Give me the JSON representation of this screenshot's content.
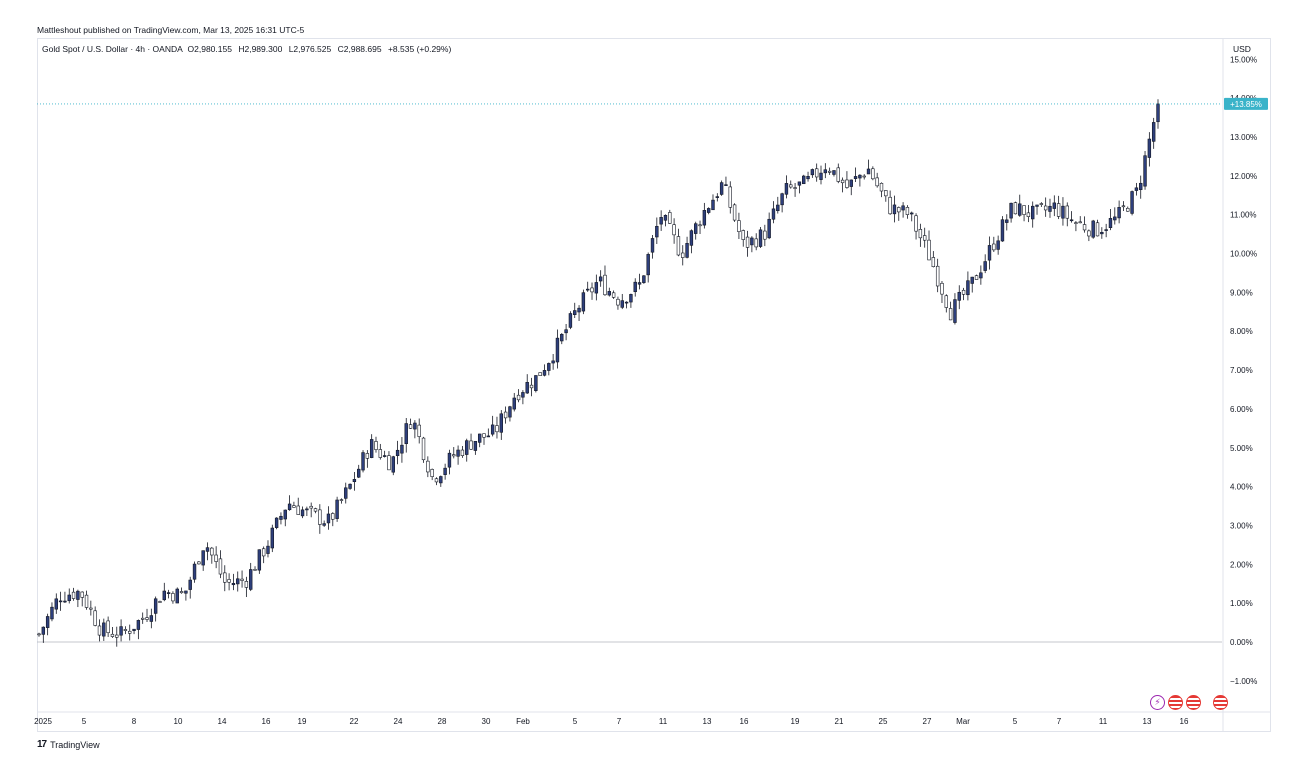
{
  "attribution": "Mattleshout published on TradingView.com, Mar 13, 2025 16:31 UTC-5",
  "legend": {
    "symbol": "Gold Spot / U.S. Dollar · 4h · OANDA",
    "open_label": "O",
    "open": "2,980.155",
    "high_label": "H",
    "high": "2,989.300",
    "low_label": "L",
    "low": "2,976.525",
    "close_label": "C",
    "close": "2,988.695",
    "change": "+8.535 (+0.29%)"
  },
  "currency": "USD",
  "brand": {
    "logo": "17",
    "name": "TradingView"
  },
  "event_icons": [
    "lightning-icon",
    "us-flag-icon",
    "us-flag-icon",
    "us-flag-icon"
  ],
  "colors": {
    "up": "#2e3f7c",
    "down": "#131722",
    "last_price_label": "#3ab3c9",
    "grid_zero": "#b2b5be"
  },
  "chart_data": {
    "type": "candlestick",
    "timeframe": "4h",
    "y_unit": "%",
    "ylim": [
      -1.8,
      15.2
    ],
    "y_ticks": [
      -1,
      0,
      1,
      2,
      3,
      4,
      5,
      6,
      7,
      8,
      9,
      10,
      11,
      12,
      13,
      14,
      15
    ],
    "y_tick_labels": [
      "−1.00%",
      "0.00%",
      "1.00%",
      "2.00%",
      "3.00%",
      "4.00%",
      "5.00%",
      "6.00%",
      "7.00%",
      "8.00%",
      "9.00%",
      "10.00%",
      "11.00%",
      "12.00%",
      "13.00%",
      "14.00%",
      "15.00%"
    ],
    "x_ticks": [
      "2025",
      "5",
      "8",
      "10",
      "14",
      "16",
      "19",
      "22",
      "24",
      "28",
      "30",
      "Feb",
      "5",
      "7",
      "11",
      "13",
      "16",
      "19",
      "21",
      "25",
      "27",
      "Mar",
      "5",
      "7",
      "11",
      "13",
      "16"
    ],
    "last_value": 13.85,
    "last_value_label": "+13.85%",
    "series": [
      {
        "x": "Jan 2",
        "y": 0.2
      },
      {
        "x": "Jan 3",
        "y": 1.2
      },
      {
        "x": "Jan 4",
        "y": 1.3
      },
      {
        "x": "Jan 5",
        "y": 0.3
      },
      {
        "x": "Jan 6",
        "y": 0.2
      },
      {
        "x": "Jan 7",
        "y": 0.6
      },
      {
        "x": "Jan 8",
        "y": 1.3
      },
      {
        "x": "Jan 9",
        "y": 1.2
      },
      {
        "x": "Jan 10",
        "y": 2.6
      },
      {
        "x": "Jan 13",
        "y": 1.5
      },
      {
        "x": "Jan 14",
        "y": 1.6
      },
      {
        "x": "Jan 15",
        "y": 2.5
      },
      {
        "x": "Jan 16",
        "y": 3.6
      },
      {
        "x": "Jan 17",
        "y": 3.3
      },
      {
        "x": "Jan 20",
        "y": 3.1
      },
      {
        "x": "Jan 21",
        "y": 4.0
      },
      {
        "x": "Jan 22",
        "y": 5.1
      },
      {
        "x": "Jan 23",
        "y": 4.6
      },
      {
        "x": "Jan 24",
        "y": 5.8
      },
      {
        "x": "Jan 27",
        "y": 4.2
      },
      {
        "x": "Jan 28",
        "y": 4.8
      },
      {
        "x": "Jan 29",
        "y": 5.2
      },
      {
        "x": "Jan 30",
        "y": 5.4
      },
      {
        "x": "Jan 31",
        "y": 6.4
      },
      {
        "x": "Feb 2",
        "y": 6.8
      },
      {
        "x": "Feb 3",
        "y": 7.6
      },
      {
        "x": "Feb 4",
        "y": 8.6
      },
      {
        "x": "Feb 5",
        "y": 9.3
      },
      {
        "x": "Feb 6",
        "y": 8.8
      },
      {
        "x": "Feb 7",
        "y": 9.2
      },
      {
        "x": "Feb 10",
        "y": 11.0
      },
      {
        "x": "Feb 11",
        "y": 10.0
      },
      {
        "x": "Feb 12",
        "y": 11.0
      },
      {
        "x": "Feb 13",
        "y": 11.8
      },
      {
        "x": "Feb 14",
        "y": 10.2
      },
      {
        "x": "Feb 17",
        "y": 10.5
      },
      {
        "x": "Feb 18",
        "y": 11.6
      },
      {
        "x": "Feb 19",
        "y": 11.8
      },
      {
        "x": "Feb 20",
        "y": 12.3
      },
      {
        "x": "Feb 21",
        "y": 11.7
      },
      {
        "x": "Feb 24",
        "y": 12.2
      },
      {
        "x": "Feb 25",
        "y": 11.2
      },
      {
        "x": "Feb 26",
        "y": 11.0
      },
      {
        "x": "Feb 27",
        "y": 9.9
      },
      {
        "x": "Feb 28",
        "y": 8.5
      },
      {
        "x": "Mar 2",
        "y": 9.2
      },
      {
        "x": "Mar 3",
        "y": 10.2
      },
      {
        "x": "Mar 4",
        "y": 11.2
      },
      {
        "x": "Mar 5",
        "y": 11.0
      },
      {
        "x": "Mar 6",
        "y": 11.2
      },
      {
        "x": "Mar 7",
        "y": 10.8
      },
      {
        "x": "Mar 10",
        "y": 10.6
      },
      {
        "x": "Mar 11",
        "y": 10.9
      },
      {
        "x": "Mar 12",
        "y": 11.6
      },
      {
        "x": "Mar 13",
        "y": 13.85
      }
    ]
  }
}
